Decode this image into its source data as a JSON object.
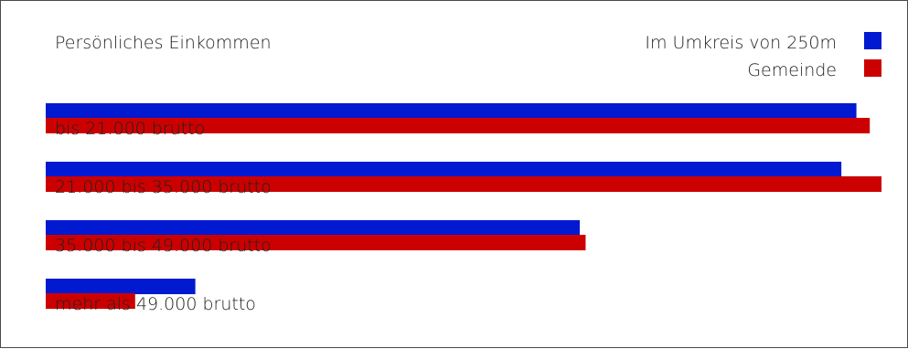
{
  "chart_data": {
    "type": "bar",
    "title": "Persönliches Einkommen",
    "categories": [
      "bis 21.000 brutto",
      "21.000 bis 35.000 brutto",
      "35.000 bis 49.000 brutto",
      "mehr als 49.000 brutto"
    ],
    "series": [
      {
        "name": "Im Umkreis von 250m",
        "values": [
          97,
          95.2,
          63.9,
          17.9
        ]
      },
      {
        "name": "Gemeinde",
        "values": [
          98.6,
          100,
          64.6,
          10.7
        ]
      }
    ],
    "xlim": [
      0,
      100
    ],
    "grid": false,
    "legend_position": "top-right",
    "colors": {
      "Im Umkreis von 250m": "#0019d1",
      "Gemeinde": "#cc0000"
    }
  }
}
